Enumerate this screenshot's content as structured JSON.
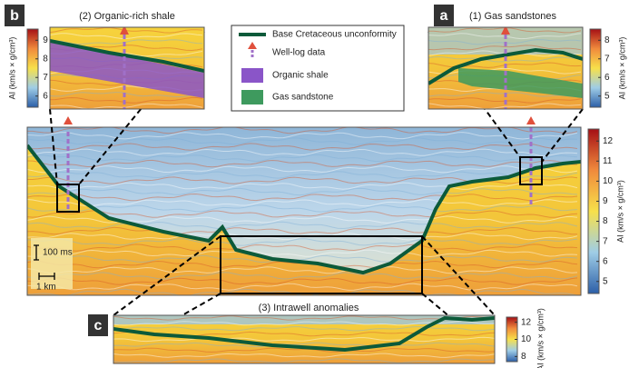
{
  "panels": {
    "b": {
      "label": "b",
      "title": "(2) Organic-rich shale",
      "colorbar": {
        "label": "AI (km/s × g/cm³)",
        "ticks": [
          9,
          8,
          7,
          6
        ]
      }
    },
    "a": {
      "label": "a",
      "title": "(1) Gas sandstones",
      "colorbar": {
        "label": "AI (km/s × g/cm³)",
        "ticks": [
          8,
          7,
          6,
          5
        ]
      }
    },
    "main": {
      "scale_time": "100 ms",
      "scale_distance": "1 km",
      "colorbar": {
        "label": "AI (km/s × g/cm³)",
        "ticks": [
          12,
          11,
          10,
          9,
          8,
          7,
          6,
          5
        ]
      }
    },
    "c": {
      "label": "c",
      "title": "(3) Intrawell anomalies",
      "colorbar": {
        "label": "AI (km/s × g/cm³)",
        "ticks": [
          12,
          10,
          8
        ]
      }
    }
  },
  "legend": [
    "Base Cretaceous unconformity",
    "Well-log data",
    "Organic shale",
    "Gas sandstone"
  ]
}
